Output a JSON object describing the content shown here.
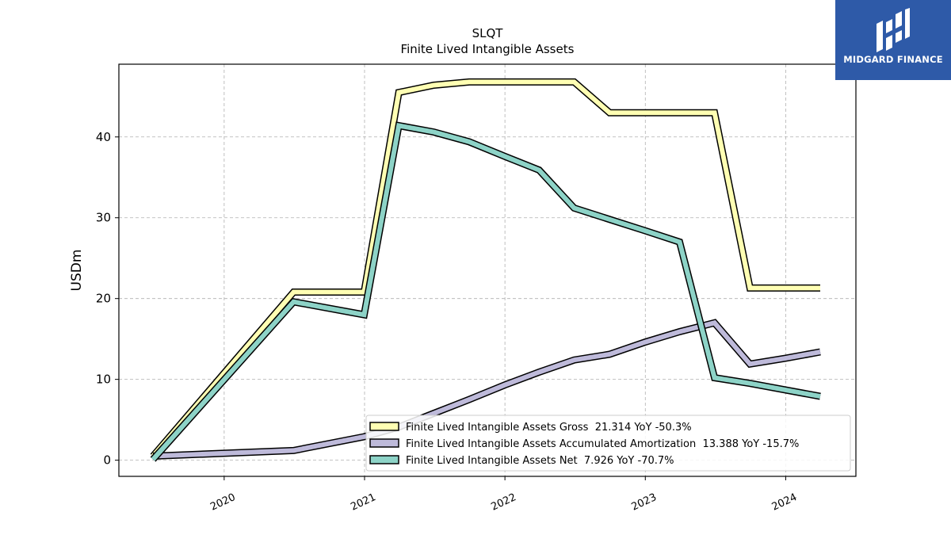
{
  "brand": {
    "name": "MIDGARD FINANCE",
    "color": "#2e5aa8"
  },
  "chart_data": {
    "type": "line",
    "title": "SLQT",
    "subtitle": "Finite Lived Intangible Assets",
    "ylabel": "USDm",
    "xlabel": "",
    "xlim": [
      2019.25,
      2024.5
    ],
    "ylim": [
      -2,
      49
    ],
    "x_ticks": [
      "2020",
      "2021",
      "2022",
      "2023",
      "2024"
    ],
    "y_ticks": [
      0,
      10,
      20,
      30,
      40
    ],
    "grid": true,
    "legend_position": "bottom-right",
    "series": [
      {
        "name": "Finite Lived Intangible Assets Gross",
        "legend": "Finite Lived Intangible Assets Gross  21.314 YoY -50.3%",
        "color": "#ffffb3",
        "x": [
          "2019-06-30",
          "2020-06-30",
          "2020-12-31",
          "2021-03-31",
          "2021-06-30",
          "2021-09-30",
          "2021-12-31",
          "2022-03-31",
          "2022-06-30",
          "2022-09-30",
          "2022-12-31",
          "2023-03-31",
          "2023-06-30",
          "2023-09-30",
          "2023-12-31",
          "2024-03-31"
        ],
        "values": [
          0.5,
          20.8,
          20.8,
          45.5,
          46.4,
          46.8,
          46.8,
          46.8,
          46.8,
          43.0,
          43.0,
          43.0,
          43.0,
          21.3,
          21.3,
          21.3
        ]
      },
      {
        "name": "Finite Lived Intangible Assets Accumulated Amortization",
        "legend": "Finite Lived Intangible Assets Accumulated Amortization  13.388 YoY -15.7%",
        "color": "#bebada",
        "x": [
          "2019-06-30",
          "2020-06-30",
          "2020-12-31",
          "2021-03-31",
          "2021-06-30",
          "2021-09-30",
          "2021-12-31",
          "2022-03-31",
          "2022-06-30",
          "2022-09-30",
          "2022-12-31",
          "2023-03-31",
          "2023-06-30",
          "2023-09-30",
          "2023-12-31",
          "2024-03-31"
        ],
        "values": [
          0.5,
          1.2,
          2.9,
          4.1,
          5.8,
          7.5,
          9.3,
          10.9,
          12.4,
          13.1,
          14.6,
          15.9,
          17.0,
          11.9,
          12.6,
          13.4
        ]
      },
      {
        "name": "Finite Lived Intangible Assets Net",
        "legend": "Finite Lived Intangible Assets Net  7.926 YoY -70.7%",
        "color": "#8dd3c7",
        "x": [
          "2019-06-30",
          "2020-06-30",
          "2020-12-31",
          "2021-03-31",
          "2021-06-30",
          "2021-09-30",
          "2021-12-31",
          "2022-03-31",
          "2022-06-30",
          "2022-09-30",
          "2022-12-31",
          "2023-03-31",
          "2023-06-30",
          "2023-09-30",
          "2023-12-31",
          "2024-03-31"
        ],
        "values": [
          0.1,
          19.6,
          18.0,
          41.4,
          40.6,
          39.4,
          37.6,
          35.9,
          31.2,
          29.8,
          28.4,
          27.0,
          10.2,
          9.5,
          8.7,
          7.9
        ]
      }
    ]
  }
}
